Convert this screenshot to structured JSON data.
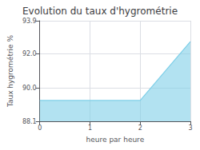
{
  "chart_data": {
    "type": "area",
    "title": "Evolution du taux d'hygrométrie",
    "xlabel": "heure par heure",
    "ylabel": "Taux hygrométrie %",
    "x": [
      0,
      2,
      3
    ],
    "values": [
      89.3,
      89.3,
      92.7
    ],
    "color": "#7ecfe8",
    "xlim": [
      0,
      3
    ],
    "xticks": [
      0,
      1,
      2,
      3
    ],
    "ylim": [
      88.1,
      93.9
    ],
    "yticks": [
      88.1,
      {
        "value": 90,
        "label": "90.0"
      },
      {
        "value": 92,
        "label": "92.0"
      },
      93.9
    ],
    "grid": true
  }
}
